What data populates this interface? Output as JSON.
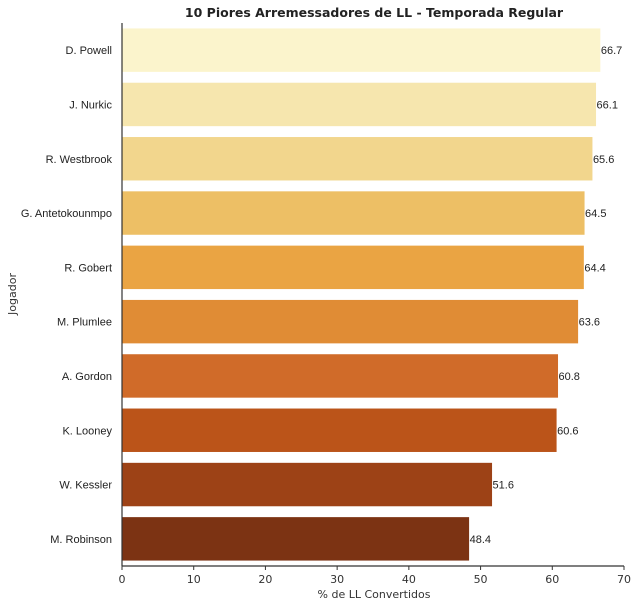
{
  "chart_data": {
    "type": "bar",
    "orientation": "horizontal",
    "title": "10 Piores Arremessadores de LL - Temporada Regular",
    "xlabel": "% de LL Convertidos",
    "ylabel": "Jogador",
    "xlim": [
      0,
      70
    ],
    "xticks": [
      0,
      10,
      20,
      30,
      40,
      50,
      60,
      70
    ],
    "grid": false,
    "categories": [
      "D. Powell",
      "J. Nurkic",
      "R. Westbrook",
      "G. Antetokounmpo",
      "R. Gobert",
      "M. Plumlee",
      "A. Gordon",
      "K. Looney",
      "W. Kessler",
      "M. Robinson"
    ],
    "values": [
      66.7,
      66.1,
      65.6,
      64.5,
      64.4,
      63.6,
      60.8,
      60.6,
      51.6,
      48.4
    ],
    "value_labels": [
      "66.7",
      "66.1",
      "65.6",
      "64.5",
      "64.4",
      "63.6",
      "60.8",
      "60.6",
      "51.6",
      "48.4"
    ],
    "colors": [
      "#fbf4cc",
      "#f6e6ae",
      "#f2d68d",
      "#edbf65",
      "#eaa443",
      "#e08c35",
      "#d06b29",
      "#bb5419",
      "#9d4216",
      "#7c3313"
    ]
  }
}
